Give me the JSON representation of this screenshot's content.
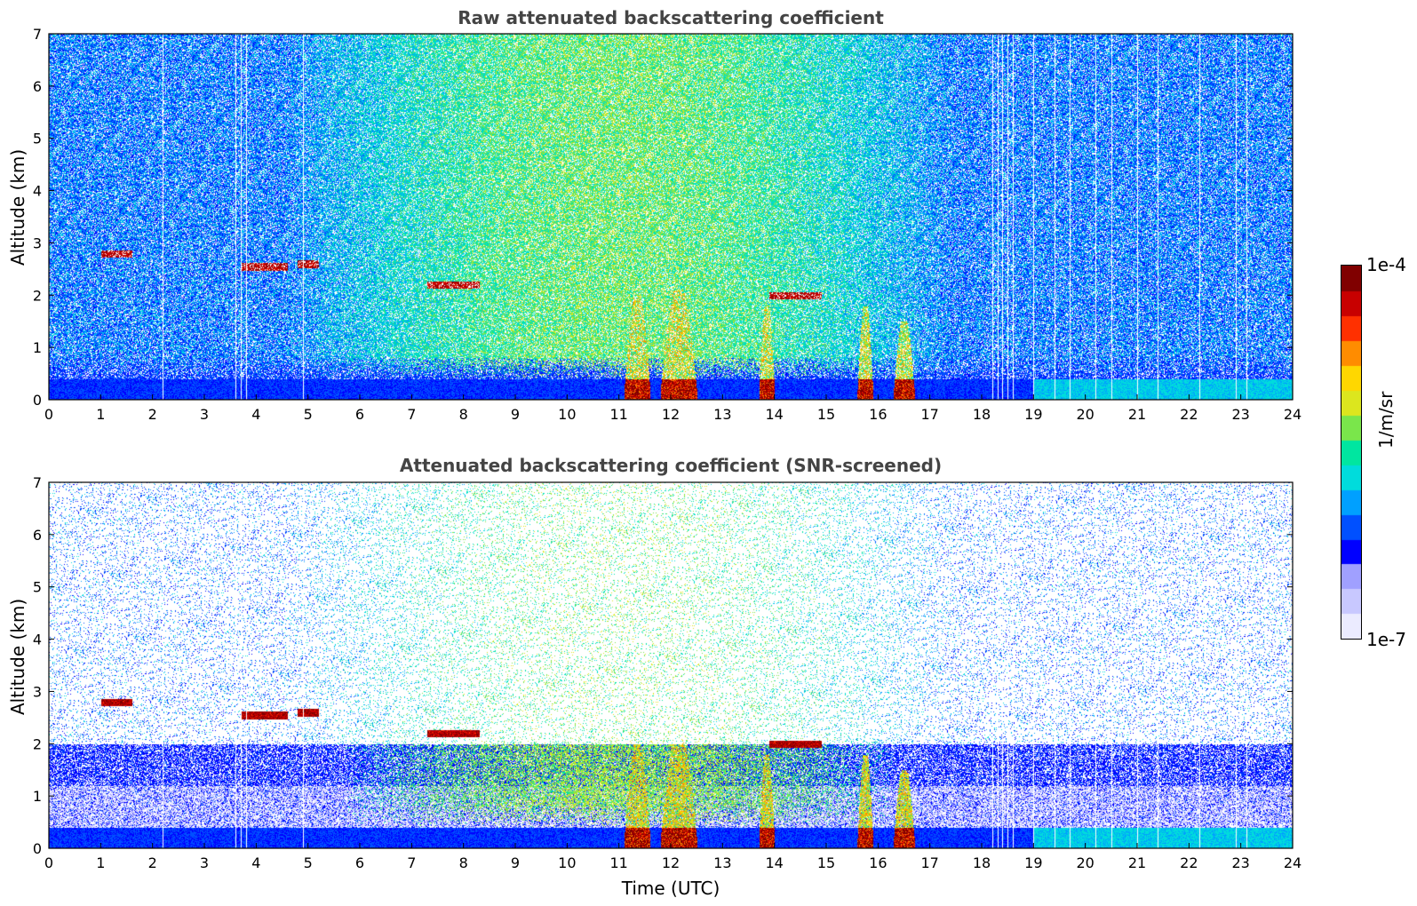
{
  "colors": {
    "colormap": [
      "#ebebff",
      "#c8c8ff",
      "#a0a0ff",
      "#0000ff",
      "#0050ff",
      "#00a0ff",
      "#00dcdc",
      "#00e6a0",
      "#7ae64b",
      "#dce61e",
      "#ffd700",
      "#ff8c00",
      "#ff3000",
      "#c80000",
      "#800000"
    ],
    "axis": "#000000",
    "title": "#444444"
  },
  "chart_data": [
    {
      "type": "heatmap",
      "title": "Raw attenuated backscattering coefficient",
      "xlabel": "",
      "ylabel": "Altitude (km)",
      "xlim": [
        0,
        24
      ],
      "ylim": [
        0,
        7
      ],
      "x_ticks": [
        "0",
        "1",
        "2",
        "3",
        "4",
        "5",
        "6",
        "7",
        "8",
        "9",
        "10",
        "11",
        "12",
        "13",
        "14",
        "15",
        "16",
        "17",
        "18",
        "19",
        "20",
        "21",
        "22",
        "23",
        "24"
      ],
      "y_ticks": [
        "0",
        "1",
        "2",
        "3",
        "4",
        "5",
        "6",
        "7"
      ],
      "features": {
        "surface_layer_top_km": 0.4,
        "aerosol_layers": [
          {
            "t0": 1.0,
            "t1": 1.6,
            "alt": 2.8
          },
          {
            "t0": 3.7,
            "t1": 4.6,
            "alt": 2.55
          },
          {
            "t0": 4.8,
            "t1": 5.2,
            "alt": 2.6
          },
          {
            "t0": 7.3,
            "t1": 8.3,
            "alt": 2.2
          },
          {
            "t0": 13.9,
            "t1": 14.9,
            "alt": 2.0
          }
        ],
        "clouds": [
          {
            "t0": 11.1,
            "t1": 11.6,
            "top": 2.0
          },
          {
            "t0": 11.8,
            "t1": 12.5,
            "top": 2.1
          },
          {
            "t0": 13.7,
            "t1": 14.0,
            "top": 1.8
          },
          {
            "t0": 15.6,
            "t1": 15.9,
            "top": 1.8
          },
          {
            "t0": 16.3,
            "t1": 16.7,
            "top": 1.5
          }
        ],
        "missing_profiles_h": [
          2.2,
          3.6,
          3.7,
          3.8,
          4.9,
          18.2,
          18.3,
          18.4,
          18.5,
          18.6,
          19.0,
          19.4,
          19.7,
          20.2,
          20.5,
          21.0,
          21.4,
          22.2,
          22.9,
          23.1
        ]
      }
    },
    {
      "type": "heatmap",
      "title": "Attenuated backscattering coefficient (SNR-screened)",
      "xlabel": "Time (UTC)",
      "ylabel": "Altitude (km)",
      "xlim": [
        0,
        24
      ],
      "ylim": [
        0,
        7
      ],
      "x_ticks": [
        "0",
        "1",
        "2",
        "3",
        "4",
        "5",
        "6",
        "7",
        "8",
        "9",
        "10",
        "11",
        "12",
        "13",
        "14",
        "15",
        "16",
        "17",
        "18",
        "19",
        "20",
        "21",
        "22",
        "23",
        "24"
      ],
      "y_ticks": [
        "0",
        "1",
        "2",
        "3",
        "4",
        "5",
        "6",
        "7"
      ]
    }
  ],
  "colorbar": {
    "label": "1/m/sr",
    "max_label": "1e-4",
    "min_label": "1e-7",
    "scale": "log"
  }
}
